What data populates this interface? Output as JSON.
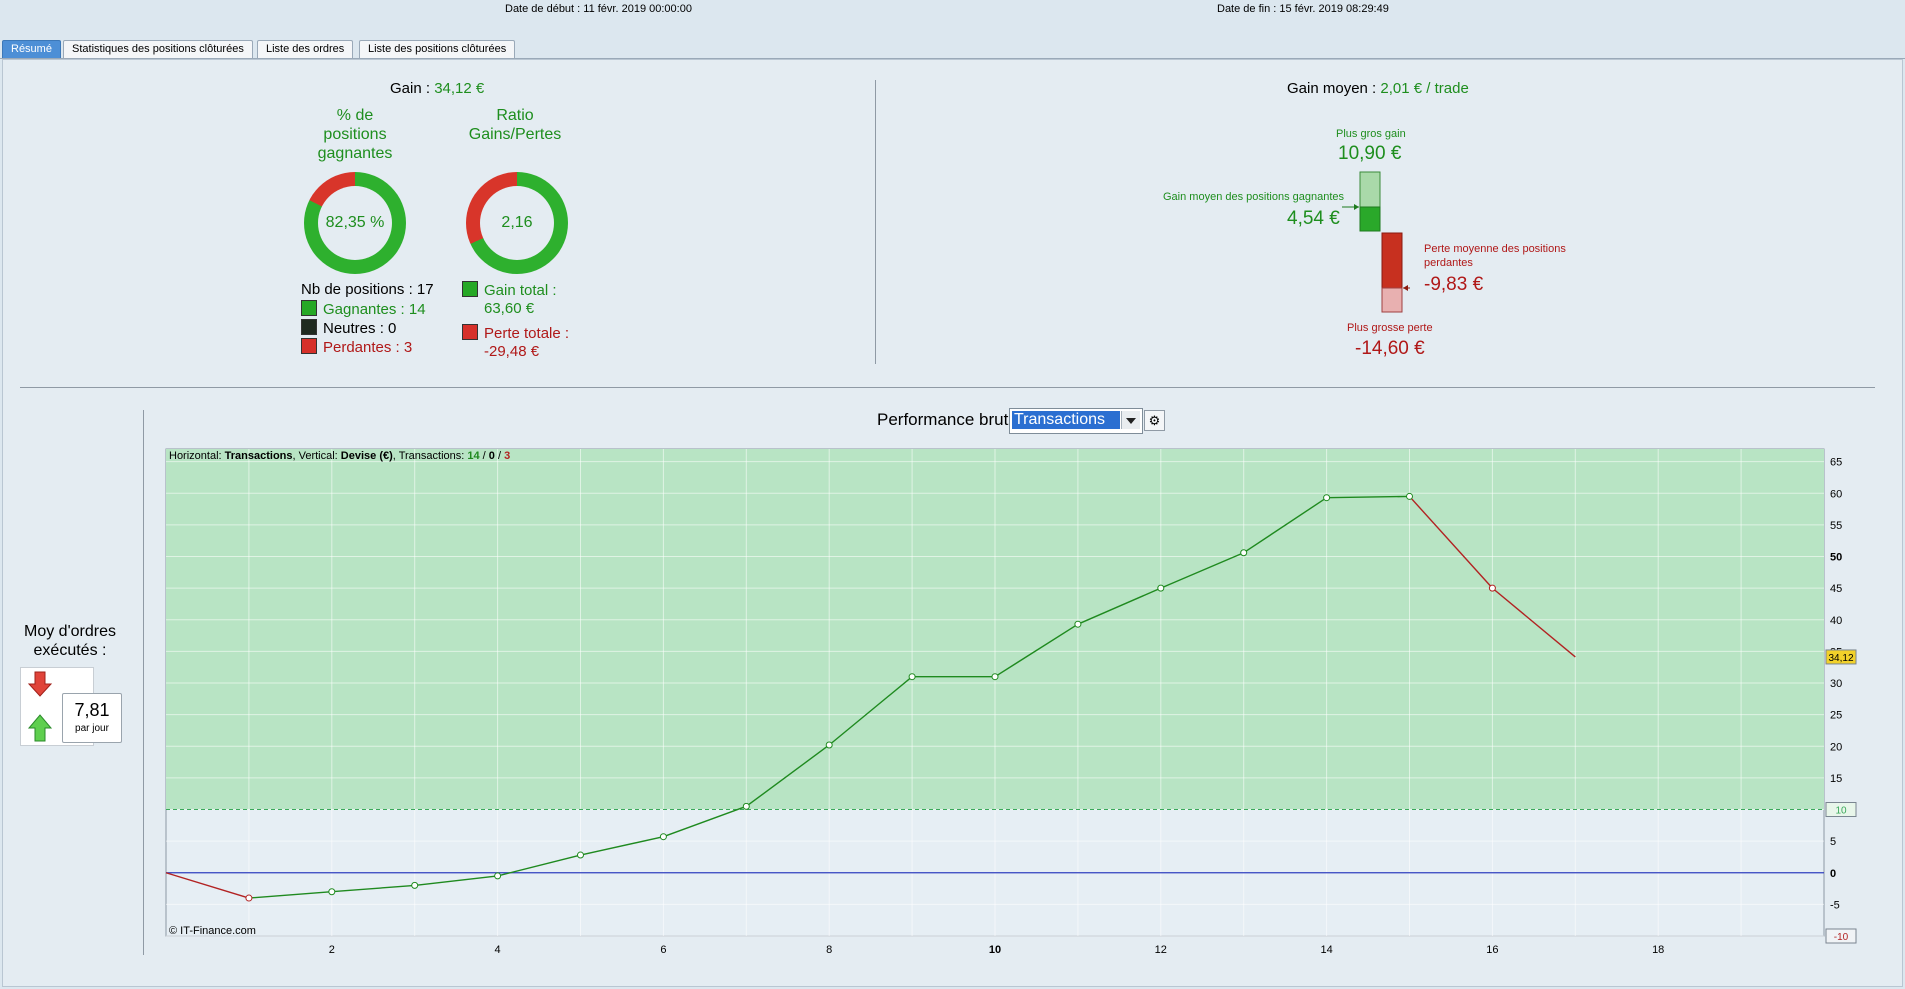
{
  "header": {
    "start_date": "Date de début :  11 févr. 2019 00:00:00",
    "end_date": "Date de fin :  15 févr. 2019 08:29:49"
  },
  "tabs": [
    "Résumé",
    "Statistiques des positions clôturées",
    "Liste des ordres",
    "Liste des positions clôturées"
  ],
  "summary": {
    "gain_label": "Gain : ",
    "gain_value": "34,12 €",
    "pct_title_1": "% de",
    "pct_title_2": "positions",
    "pct_title_3": "gagnantes",
    "pct_value": "82,35 %",
    "pct_fraction": 0.8235,
    "ratio_title_1": "Ratio",
    "ratio_title_2": "Gains/Pertes",
    "ratio_value": "2,16",
    "ratio_fraction": 0.683,
    "nb_positions": "Nb de positions : 17",
    "gagnantes": "Gagnantes : 14",
    "neutres": "Neutres : 0",
    "perdantes": "Perdantes : 3",
    "gain_total_label": "Gain total :",
    "gain_total_value": "63,60 €",
    "perte_totale_label": "Perte totale :",
    "perte_totale_value": "-29,48 €"
  },
  "gain_moyen": {
    "label": "Gain moyen : ",
    "value": "2,01 € / trade",
    "plus_gros_gain_label": "Plus gros gain",
    "plus_gros_gain_value": "10,90 €",
    "gain_moyen_gagnantes_label": "Gain moyen des positions gagnantes",
    "gain_moyen_gagnantes_value": "4,54 €",
    "perte_moyenne_label_1": "Perte moyenne des positions",
    "perte_moyenne_label_2": "perdantes",
    "perte_moyenne_value": "-9,83 €",
    "plus_grosse_perte_label": "Plus grosse perte",
    "plus_grosse_perte_value": "-14,60 €"
  },
  "moy_ordres": {
    "label_1": "Moy d'ordres",
    "label_2": "exécutés :",
    "value": "7,81",
    "unit": "par jour"
  },
  "chart_header": {
    "title": "Performance brute",
    "selected": "Transactions"
  },
  "chart_data": {
    "type": "line",
    "info_prefix": "Horizontal: ",
    "info_h": "Transactions",
    "info_mid": ", Vertical: ",
    "info_v": "Devise (€)",
    "info_tx": ", Transactions: ",
    "info_win": "14",
    "info_sep": " / ",
    "info_neutral": "0",
    "info_loss": "3",
    "x": [
      0,
      1,
      2,
      3,
      4,
      5,
      6,
      7,
      8,
      9,
      10,
      11,
      12,
      13,
      14,
      15,
      16,
      17
    ],
    "y": [
      0,
      -4,
      -3,
      -2,
      -0.5,
      2.8,
      5.7,
      10.5,
      20.2,
      31,
      31,
      39.3,
      45,
      50.6,
      59.3,
      59.5,
      45,
      34.12
    ],
    "xlim": [
      0,
      20.0
    ],
    "ylim": [
      -10,
      67
    ],
    "xticks": [
      2,
      4,
      6,
      8,
      10,
      12,
      14,
      16,
      18
    ],
    "yticks": [
      65,
      60,
      55,
      50,
      45,
      40,
      35,
      30,
      25,
      20,
      15,
      10,
      5,
      0,
      -5,
      -10
    ],
    "threshold": 10,
    "last_value_label": "34,12",
    "threshold_label": "10",
    "min_label": "-10",
    "copyright": "© IT-Finance.com",
    "colors": {
      "gain": "#1f8a1f",
      "loss": "#b22222",
      "zero": "#2f3fbf",
      "band": "#b8e4c4"
    }
  }
}
